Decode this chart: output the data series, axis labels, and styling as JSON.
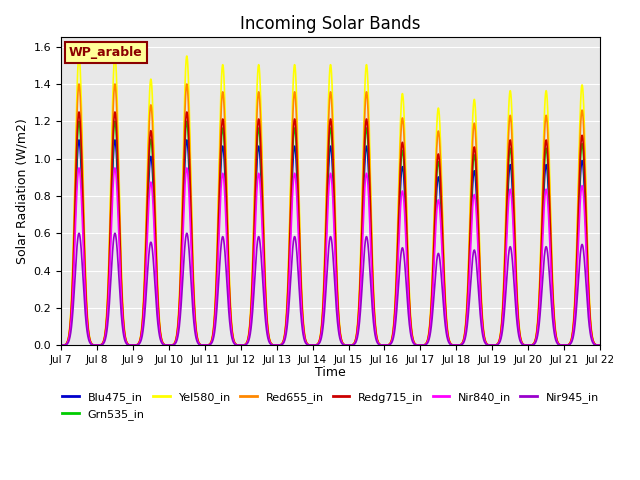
{
  "title": "Incoming Solar Bands",
  "xlabel": "Time",
  "ylabel": "Solar Radiation (W/m2)",
  "ylim": [
    0,
    1.65
  ],
  "yticks": [
    0.0,
    0.2,
    0.4,
    0.6,
    0.8,
    1.0,
    1.2,
    1.4,
    1.6
  ],
  "bg_color": "#e8e8e8",
  "annotation_text": "WP_arable",
  "annotation_fg": "#8b0000",
  "annotation_bg": "#ffff99",
  "series": [
    {
      "name": "Blu475_in",
      "color": "#0000cc",
      "peak": 1.1,
      "lw": 1.2
    },
    {
      "name": "Grn535_in",
      "color": "#00cc00",
      "peak": 1.2,
      "lw": 1.2
    },
    {
      "name": "Yel580_in",
      "color": "#ffff00",
      "peak": 1.55,
      "lw": 1.2
    },
    {
      "name": "Red655_in",
      "color": "#ff8800",
      "peak": 1.4,
      "lw": 1.2
    },
    {
      "name": "Redg715_in",
      "color": "#cc0000",
      "peak": 1.25,
      "lw": 1.2
    },
    {
      "name": "Nir840_in",
      "color": "#ff00ff",
      "peak": 0.95,
      "lw": 1.2
    },
    {
      "name": "Nir945_in",
      "color": "#9900cc",
      "peak": 0.6,
      "lw": 1.2
    }
  ],
  "n_days": 15,
  "start_day": 7,
  "points_per_day": 200,
  "sigma": 0.11,
  "day_labels": [
    "Jul 7",
    "Jul 8",
    "Jul 9",
    "Jul 10",
    "Jul 11",
    "Jul 12",
    "Jul 13",
    "Jul 14",
    "Jul 15",
    "Jul 16",
    "Jul 17",
    "Jul 18",
    "Jul 19",
    "Jul 20",
    "Jul 21",
    "Jul 22"
  ],
  "day_scale": [
    1.0,
    1.0,
    0.92,
    1.0,
    0.97,
    0.97,
    0.97,
    0.97,
    0.97,
    0.87,
    0.82,
    0.85,
    0.88,
    0.88,
    0.9
  ]
}
